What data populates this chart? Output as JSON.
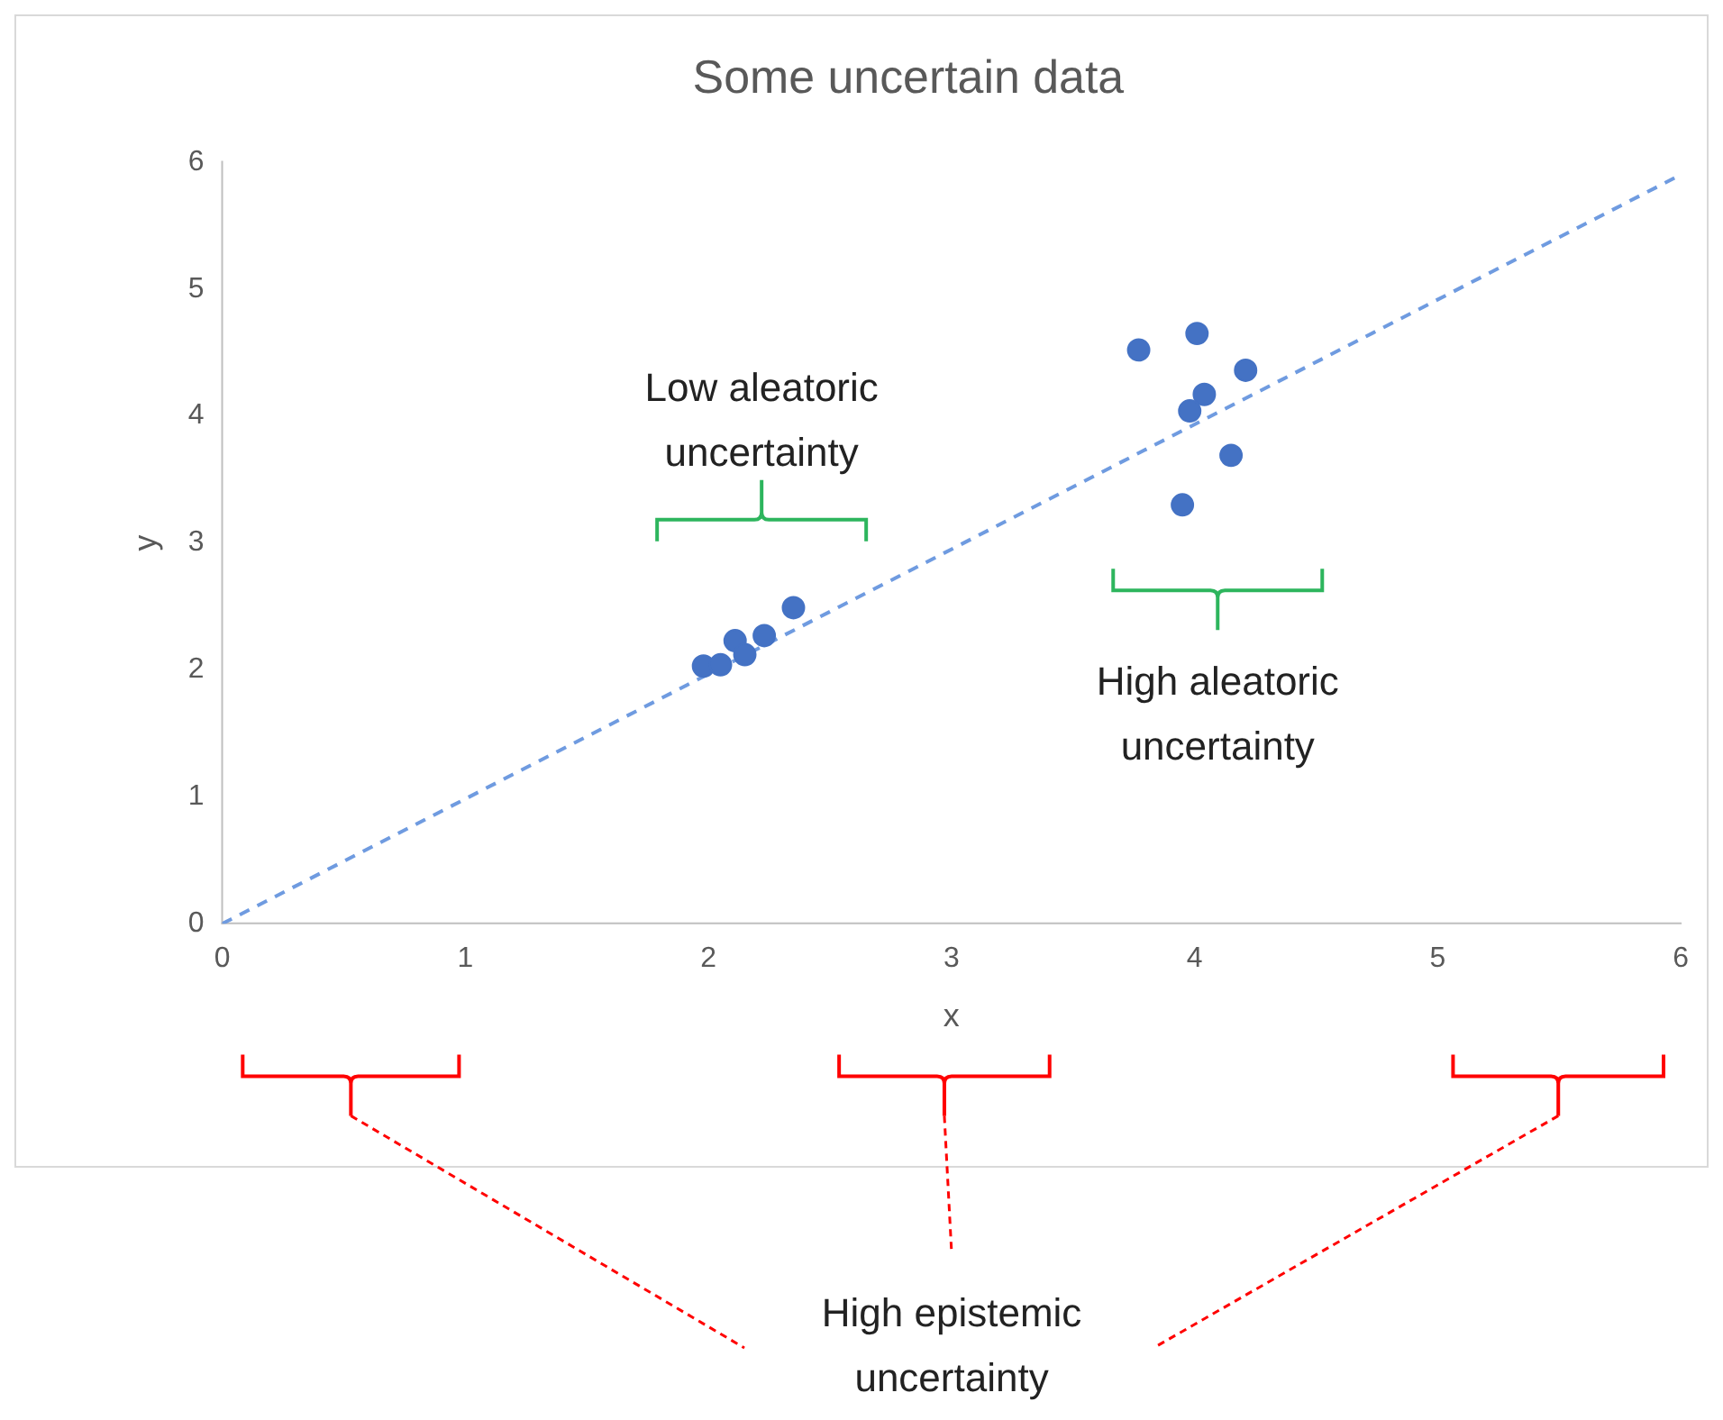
{
  "chart_data": {
    "type": "scatter",
    "title": "Some uncertain data",
    "xlabel": "x",
    "ylabel": "y",
    "xlim": [
      0,
      6
    ],
    "xticks": [
      0,
      1,
      2,
      3,
      4,
      5,
      6
    ],
    "ylim": [
      0,
      6
    ],
    "yticks": [
      0,
      1,
      2,
      3,
      4,
      5,
      6
    ],
    "marker": "circle",
    "series": [
      {
        "type": "scatter",
        "color": "#4472c4",
        "x": [
          1.98,
          2.05,
          2.11,
          2.15,
          2.23,
          2.35,
          3.77,
          4.01,
          4.21,
          4.04,
          3.98,
          4.15,
          3.95
        ],
        "values": [
          2.03,
          2.04,
          2.23,
          2.12,
          2.27,
          2.49,
          4.52,
          4.65,
          4.36,
          4.17,
          4.04,
          3.69,
          3.3
        ]
      },
      {
        "type": "line",
        "color": "#6f9be0",
        "x": [
          0,
          6
        ],
        "values": [
          0,
          5.9
        ],
        "line_style": "dashed",
        "marker": "none"
      }
    ],
    "annotations": [
      "Low aleatoric uncertainty",
      "High aleatoric uncertainty",
      "High epistemic uncertainty"
    ]
  }
}
